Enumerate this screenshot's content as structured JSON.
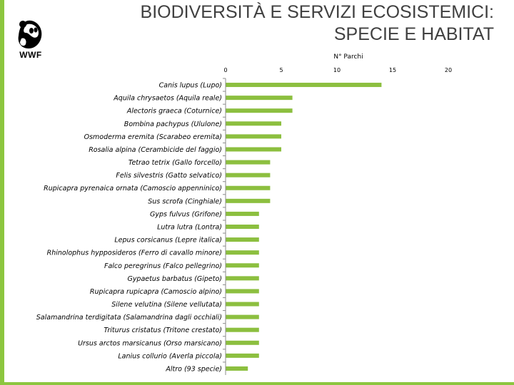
{
  "title": {
    "line1": "BIODIVERSITÀ E SERVIZI ECOSISTEMICI:",
    "line2": "SPECIE E HABITAT"
  },
  "logo": {
    "text": "WWF",
    "icon": "panda-icon"
  },
  "colors": {
    "bar": "#8cbf3f",
    "accent": "#8cc63f",
    "title": "#404040"
  },
  "chart_data": {
    "type": "bar",
    "orientation": "horizontal",
    "title": "N° Parchi",
    "xlabel": "N° Parchi",
    "ylabel": "",
    "xlim": [
      0,
      20
    ],
    "xticks": [
      0,
      5,
      10,
      15,
      20
    ],
    "categories": [
      "Canis lupus (Lupo)",
      "Aquila chrysaetos (Aquila reale)",
      "Alectoris graeca (Coturnice)",
      "Bombina pachypus (Ululone)",
      "Osmoderma eremita (Scarabeo eremita)",
      "Rosalia alpina (Cerambicide del faggio)",
      "Tetrao tetrix (Gallo forcello)",
      "Felis silvestris (Gatto selvatico)",
      "Rupicapra pyrenaica ornata (Camoscio appenninico)",
      "Sus scrofa (Cinghiale)",
      "Gyps fulvus (Grifone)",
      "Lutra lutra (Lontra)",
      "Lepus corsicanus (Lepre italica)",
      "Rhinolophus hypposideros (Ferro di cavallo minore)",
      "Falco peregrinus (Falco pellegrino)",
      "Gypaetus barbatus (Gipeto)",
      "Rupicapra rupicapra (Camoscio alpino)",
      "Silene velutina (Silene vellutata)",
      "Salamandrina terdigitata (Salamandrina dagli occhiali)",
      "Triturus cristatus (Tritone crestato)",
      "Ursus arctos marsicanus (Orso marsicano)",
      "Lanius collurio (Averla piccola)",
      "Altro (93 specie)"
    ],
    "values": [
      14,
      6,
      6,
      5,
      5,
      5,
      4,
      4,
      4,
      4,
      3,
      3,
      3,
      3,
      3,
      3,
      3,
      3,
      3,
      3,
      3,
      3,
      2
    ],
    "grid": false,
    "legend": "none"
  }
}
